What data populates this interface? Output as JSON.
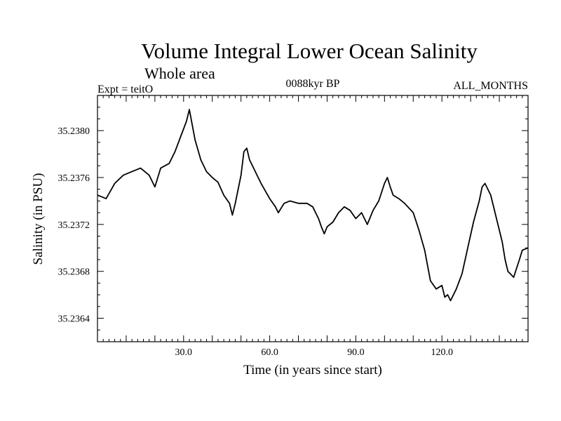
{
  "chart_data": {
    "type": "line",
    "title": "Volume Integral Lower Ocean Salinity",
    "subtitle": "Whole area",
    "experiment": "Expt = teitO",
    "period": "0088kyr BP",
    "months": "ALL_MONTHS",
    "xlabel": "Time (in years since start)",
    "ylabel": "Salinity (in PSU)",
    "xlim": [
      0,
      150
    ],
    "ylim": [
      35.2362,
      35.2383
    ],
    "x_ticks": [
      30,
      60,
      90,
      120
    ],
    "x_tick_labels": [
      "30.0",
      "60.0",
      "90.0",
      "120.0"
    ],
    "y_ticks": [
      35.2364,
      35.2368,
      35.2372,
      35.2376,
      35.238
    ],
    "y_tick_labels": [
      "35.2364",
      "35.2368",
      "35.2372",
      "35.2376",
      "35.2380"
    ],
    "grid": false,
    "series": [
      {
        "name": "Salinity",
        "x": [
          0,
          3,
          6,
          9,
          12,
          15,
          18,
          20,
          22,
          25,
          27,
          29,
          31,
          32,
          33,
          34,
          36,
          38,
          40,
          42,
          44,
          46,
          47,
          48,
          50,
          51,
          52,
          53,
          55,
          57,
          60,
          62,
          63,
          65,
          67,
          70,
          73,
          75,
          77,
          78,
          79,
          80,
          82,
          84,
          86,
          88,
          90,
          92,
          94,
          96,
          98,
          100,
          101,
          102,
          103,
          105,
          107,
          110,
          112,
          114,
          115,
          116,
          118,
          120,
          121,
          122,
          123,
          125,
          127,
          129,
          131,
          133,
          134,
          135,
          137,
          139,
          141,
          142,
          143,
          145,
          147,
          148,
          150
        ],
        "values": [
          35.23745,
          35.23742,
          35.23755,
          35.23762,
          35.23765,
          35.23768,
          35.23762,
          35.23752,
          35.23768,
          35.23772,
          35.23782,
          35.23795,
          35.23808,
          35.23818,
          35.23805,
          35.23792,
          35.23775,
          35.23765,
          35.2376,
          35.23756,
          35.23745,
          35.23738,
          35.23728,
          35.23738,
          35.23762,
          35.23782,
          35.23785,
          35.23775,
          35.23765,
          35.23755,
          35.23742,
          35.23735,
          35.2373,
          35.23738,
          35.2374,
          35.23738,
          35.23738,
          35.23735,
          35.23725,
          35.23718,
          35.23712,
          35.23718,
          35.23722,
          35.2373,
          35.23735,
          35.23732,
          35.23725,
          35.2373,
          35.2372,
          35.23732,
          35.2374,
          35.23755,
          35.2376,
          35.23752,
          35.23745,
          35.23742,
          35.23738,
          35.2373,
          35.23715,
          35.23698,
          35.23685,
          35.23672,
          35.23665,
          35.23668,
          35.23658,
          35.2366,
          35.23655,
          35.23665,
          35.23678,
          35.237,
          35.23722,
          35.2374,
          35.23752,
          35.23755,
          35.23745,
          35.23725,
          35.23705,
          35.2369,
          35.2368,
          35.23675,
          35.2369,
          35.23698,
          35.237
        ]
      }
    ]
  }
}
